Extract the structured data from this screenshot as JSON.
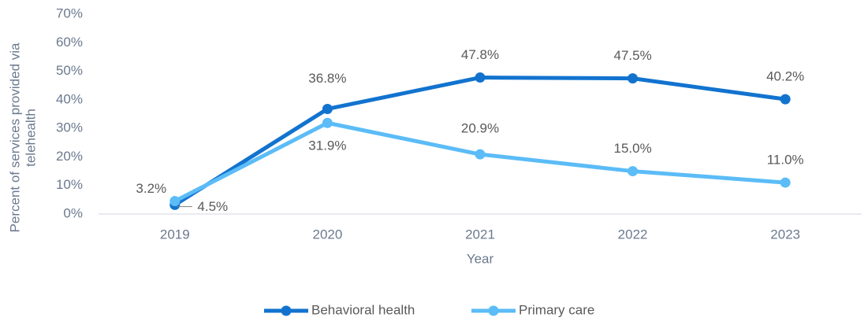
{
  "chart_data": {
    "type": "line",
    "x_label": "Year",
    "y_label": [
      "Percent of services provided via",
      "telehealth"
    ],
    "categories": [
      "2019",
      "2020",
      "2021",
      "2022",
      "2023"
    ],
    "series": [
      {
        "name": "Behavioral health",
        "color": "#1273cf",
        "values": [
          3.2,
          36.8,
          47.8,
          47.5,
          40.2
        ],
        "value_labels": [
          "3.2%",
          "36.8%",
          "47.8%",
          "47.5%",
          "40.2%"
        ]
      },
      {
        "name": "Primary care",
        "color": "#5bbcf7",
        "values": [
          4.5,
          31.9,
          20.9,
          15.0,
          11.0
        ],
        "value_labels": [
          "4.5%",
          "31.9%",
          "20.9%",
          "15.0%",
          "11.0%"
        ]
      }
    ],
    "ylim": [
      0,
      70
    ],
    "yticks": [
      {
        "value": 0,
        "label": "0%"
      },
      {
        "value": 10,
        "label": "10%"
      },
      {
        "value": 20,
        "label": "20%"
      },
      {
        "value": 30,
        "label": "30%"
      },
      {
        "value": 40,
        "label": "40%"
      },
      {
        "value": 50,
        "label": "50%"
      },
      {
        "value": 60,
        "label": "60%"
      },
      {
        "value": 70,
        "label": "70%"
      }
    ],
    "grid": false,
    "legend": "bottom"
  }
}
